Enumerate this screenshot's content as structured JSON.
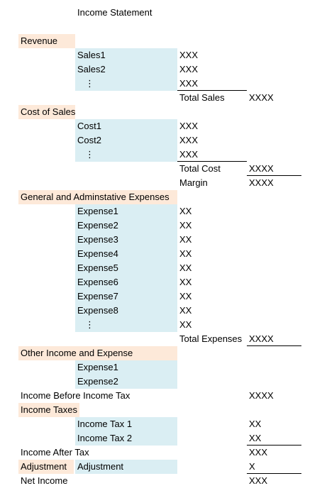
{
  "title": "Income Statement",
  "rows": [
    {
      "col_a": "Revenue"
    },
    {
      "col_b": "Sales1",
      "col_c": "XXX"
    },
    {
      "col_b": "Sales2",
      "col_c": "XXX"
    },
    {
      "col_b": "⋮",
      "col_c": "XXX"
    },
    {
      "col_c": "Total Sales",
      "col_d": "XXXX"
    },
    {
      "col_a": "Cost of Sales"
    },
    {
      "col_b": "Cost1",
      "col_c": "XXX"
    },
    {
      "col_b": "Cost2",
      "col_c": "XXX"
    },
    {
      "col_b": "⋮",
      "col_c": "XXX"
    },
    {
      "col_c": "Total Cost",
      "col_d": "XXXX"
    },
    {
      "col_c": "Margin",
      "col_d": "XXXX"
    },
    {
      "col_a": "General and Adminstative Expenses"
    },
    {
      "col_b": "Expense1",
      "col_c": "XX"
    },
    {
      "col_b": "Expense2",
      "col_c": "XX"
    },
    {
      "col_b": "Expense3",
      "col_c": "XX"
    },
    {
      "col_b": "Expense4",
      "col_c": "XX"
    },
    {
      "col_b": "Expense5",
      "col_c": "XX"
    },
    {
      "col_b": "Expense6",
      "col_c": "XX"
    },
    {
      "col_b": "Expense7",
      "col_c": "XX"
    },
    {
      "col_b": "Expense8",
      "col_c": "XX"
    },
    {
      "col_b": "⋮",
      "col_c": "XX"
    },
    {
      "col_c": "Total Expenses",
      "col_d": "XXXX"
    },
    {
      "col_a": "Other Income and Expense"
    },
    {
      "col_b": "Expense1"
    },
    {
      "col_b": "Expense2"
    },
    {
      "col_a": "Income Before Income Tax",
      "col_d": "XXXX"
    },
    {
      "col_a": "Income Taxes"
    },
    {
      "col_b": "Income Tax 1",
      "col_d": "XX"
    },
    {
      "col_b": "Income Tax 2",
      "col_d": "XX"
    },
    {
      "col_a": "Income After Tax",
      "col_d": "XXX"
    },
    {
      "col_a": "Adjustment",
      "col_b": "Adjustment",
      "col_d": "X"
    },
    {
      "col_a": "Net Income",
      "col_d": "XXX"
    }
  ]
}
